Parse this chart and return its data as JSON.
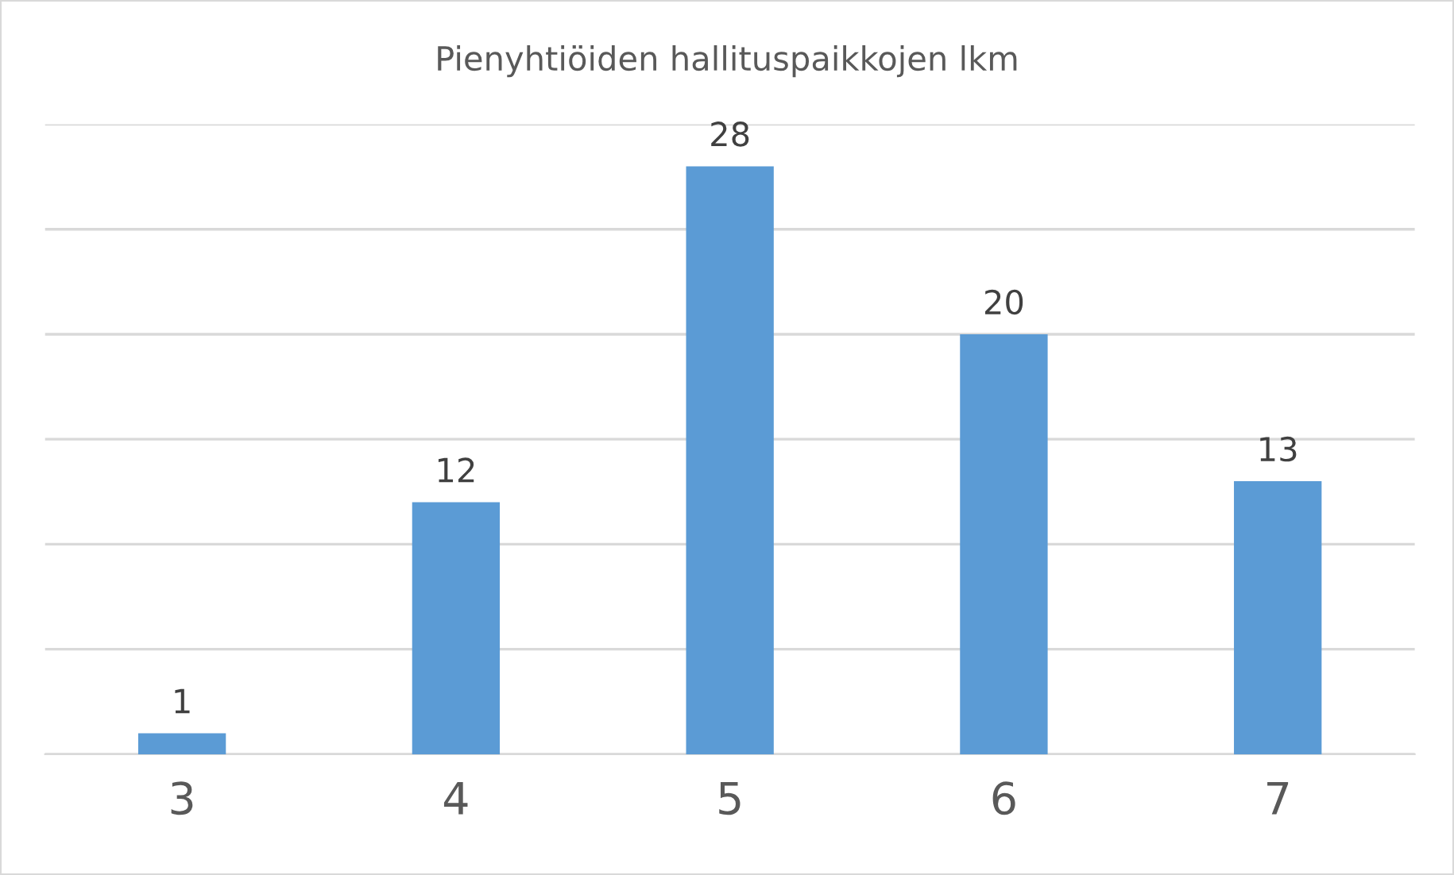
{
  "chart_data": {
    "type": "bar",
    "title": "Pienyhtiöiden hallituspaikkojen lkm",
    "categories": [
      "3",
      "4",
      "5",
      "6",
      "7"
    ],
    "values": [
      1,
      12,
      28,
      20,
      13
    ],
    "color": "#5b9bd5",
    "ylim": [
      0,
      30
    ],
    "yticks": [
      {
        "value": 0,
        "label": null
      },
      {
        "value": 5,
        "label": null
      },
      {
        "value": 10,
        "label": null
      },
      {
        "value": 15,
        "label": null
      },
      {
        "value": 20,
        "label": null
      },
      {
        "value": 25,
        "label": null
      },
      {
        "value": 30,
        "label": null
      }
    ],
    "tick_labels": "x",
    "grid": "y",
    "data_labels": true,
    "legend": false
  }
}
